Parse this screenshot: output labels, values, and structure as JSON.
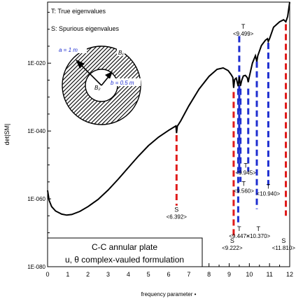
{
  "chart_data": {
    "type": "line",
    "title": "",
    "xlabel": "frequency parameter •",
    "ylabel": "det|SM|",
    "xlim": [
      0,
      12
    ],
    "ylim_log10": [
      -80,
      -2
    ],
    "x_ticks": [
      "0",
      "1",
      "2",
      "3",
      "4",
      "5",
      "6",
      "7",
      "8",
      "9",
      "10",
      "11",
      "12"
    ],
    "y_ticks": [
      {
        "label": "1E-020",
        "log10": -20
      },
      {
        "label": "1E-040",
        "log10": -40
      },
      {
        "label": "1E-060",
        "log10": -60
      },
      {
        "label": "1E-080",
        "log10": -80
      }
    ],
    "legend": [
      "T: True eigenvalues",
      "S: Spurious eigenvalues"
    ],
    "series": [
      {
        "points": [
          [
            0.0,
            -57.5
          ],
          [
            0.08,
            -60.5
          ],
          [
            0.2,
            -62.3
          ],
          [
            0.4,
            -63.6
          ],
          [
            0.7,
            -64.5
          ],
          [
            0.95,
            -64.8
          ],
          [
            1.2,
            -64.6
          ],
          [
            1.6,
            -63.7
          ],
          [
            2.0,
            -62.3
          ],
          [
            2.5,
            -60.2
          ],
          [
            3.0,
            -57.4
          ],
          [
            3.5,
            -54.2
          ],
          [
            4.0,
            -50.8
          ],
          [
            4.5,
            -47.4
          ],
          [
            5.0,
            -44.3
          ],
          [
            5.5,
            -41.8
          ],
          [
            6.0,
            -39.8
          ],
          [
            6.3,
            -38.7
          ],
          [
            6.36,
            -38.5
          ],
          [
            6.392,
            -40.6
          ],
          [
            6.43,
            -38.6
          ],
          [
            6.6,
            -37.0
          ],
          [
            7.0,
            -32.6
          ],
          [
            7.5,
            -27.7
          ],
          [
            8.0,
            -23.9
          ],
          [
            8.4,
            -21.8
          ],
          [
            8.7,
            -21.4
          ],
          [
            8.95,
            -22.2
          ],
          [
            9.1,
            -23.4
          ],
          [
            9.18,
            -24.2
          ],
          [
            9.222,
            -27.3
          ],
          [
            9.27,
            -24.8
          ],
          [
            9.35,
            -24.4
          ],
          [
            9.447,
            -26.8
          ],
          [
            9.5,
            -24.0
          ],
          [
            9.56,
            -26.7
          ],
          [
            9.62,
            -25.1
          ],
          [
            9.7,
            -23.8
          ],
          [
            9.8,
            -23.6
          ],
          [
            9.9,
            -24.3
          ],
          [
            9.945,
            -25.6
          ],
          [
            10.0,
            -24.0
          ],
          [
            10.15,
            -20.0
          ],
          [
            10.3,
            -17.8
          ],
          [
            10.37,
            -19.5
          ],
          [
            10.42,
            -17.8
          ],
          [
            10.6,
            -14.8
          ],
          [
            10.8,
            -13.2
          ],
          [
            10.9,
            -12.8
          ],
          [
            10.94,
            -13.6
          ],
          [
            11.0,
            -12.8
          ],
          [
            11.2,
            -9.4
          ],
          [
            11.5,
            -7.8
          ],
          [
            11.7,
            -7.2
          ],
          [
            11.81,
            -7.8
          ],
          [
            11.9,
            -6.2
          ],
          [
            12.0,
            -2.0
          ]
        ]
      }
    ],
    "marker_lines": [
      {
        "x": 6.392,
        "kind": "S",
        "top": -41.2,
        "bottom": -62.0
      },
      {
        "x": 9.222,
        "kind": "S",
        "top": -28.5,
        "bottom": -71.0
      },
      {
        "x": 9.447,
        "kind": "T",
        "top": -27.5,
        "bottom": -68.0
      },
      {
        "x": 9.499,
        "kind": "T",
        "top": -12.0,
        "bottom": -52.0
      },
      {
        "x": 9.56,
        "kind": "T",
        "top": -27.5,
        "bottom": -55.0
      },
      {
        "x": 9.945,
        "kind": "T",
        "top": -27.5,
        "bottom": -52.0
      },
      {
        "x": 10.37,
        "kind": "T",
        "top": -19.5,
        "bottom": -63.0
      },
      {
        "x": 10.94,
        "kind": "T",
        "top": -14.0,
        "bottom": -56.0
      },
      {
        "x": 11.81,
        "kind": "S",
        "top": -8.5,
        "bottom": -65.0
      }
    ],
    "annotations": [
      {
        "label": "S",
        "value": "<6.392>",
        "x": 6.392,
        "y": -63.8
      },
      {
        "label": "S",
        "value": "<9.222>",
        "x": 9.15,
        "y": -73.0
      },
      {
        "label": "T",
        "value": "<9.447>",
        "x": 9.5,
        "y": -69.5
      },
      {
        "label": "T",
        "value": "<9.499>",
        "x": 9.7,
        "y": -9.8
      },
      {
        "label": "T",
        "value": "<9.560>",
        "x": 9.72,
        "y": -56.2
      },
      {
        "label": "T",
        "value": "<9.945>",
        "x": 9.82,
        "y": -50.8
      },
      {
        "label": "T",
        "value": "<10.370>",
        "x": 10.45,
        "y": -69.5
      },
      {
        "label": "T",
        "value": "<10.940>",
        "x": 10.94,
        "y": -57.0
      },
      {
        "label": "S",
        "value": "<11.810>",
        "x": 11.7,
        "y": -73.0
      }
    ],
    "inset_labels": {
      "a": "a = 1 m",
      "b": "b = 0.5 m",
      "B1": "B₁",
      "B2": "B₂"
    },
    "caption_box": {
      "line1": "C-C annular plate",
      "line2": "u, θ complex-vauled formulation"
    },
    "colors": {
      "curve": "#000000",
      "true_marker": "#1f2fd0",
      "spurious_marker": "#e01a1a",
      "inset_label": "#1f2fd0"
    }
  }
}
